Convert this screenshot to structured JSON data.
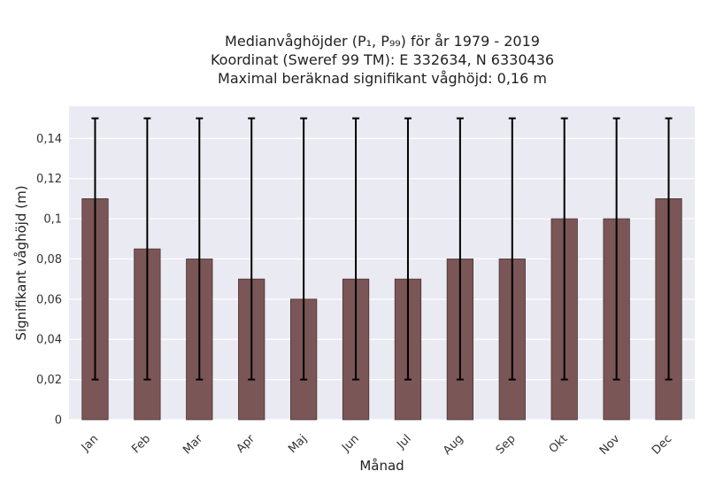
{
  "chart_data": {
    "type": "bar",
    "title_lines": [
      "Medianvåghöjder (P₁, P₉₉) för år 1979 - 2019",
      "Koordinat (Sweref 99 TM): E 332634, N 6330436",
      "Maximal beräknad signifikant våghöjd: 0,16 m"
    ],
    "xlabel": "Månad",
    "ylabel": "Signifikant våghöjd (m)",
    "categories": [
      "Jan",
      "Feb",
      "Mar",
      "Apr",
      "Maj",
      "Jun",
      "Jul",
      "Aug",
      "Sep",
      "Okt",
      "Nov",
      "Dec"
    ],
    "values": [
      0.11,
      0.085,
      0.08,
      0.07,
      0.06,
      0.07,
      0.07,
      0.08,
      0.08,
      0.1,
      0.1,
      0.11
    ],
    "err_low": [
      0.02,
      0.02,
      0.02,
      0.02,
      0.02,
      0.02,
      0.02,
      0.02,
      0.02,
      0.02,
      0.02,
      0.02
    ],
    "err_high": [
      0.15,
      0.15,
      0.15,
      0.15,
      0.15,
      0.15,
      0.15,
      0.15,
      0.15,
      0.15,
      0.15,
      0.15
    ],
    "ylim": [
      0,
      0.156
    ],
    "yticks": [
      0,
      0.02,
      0.04,
      0.06,
      0.08,
      0.1,
      0.12,
      0.14
    ],
    "ytick_labels": [
      "0",
      "0,02",
      "0,04",
      "0,06",
      "0,08",
      "0,1",
      "0,12",
      "0,14"
    ],
    "grid": true,
    "colors": {
      "bar": "#7a5656",
      "bar_edge": "#4a3333",
      "error": "#000000",
      "plot_bg": "#eaeaf2",
      "grid": "#ffffff"
    }
  }
}
